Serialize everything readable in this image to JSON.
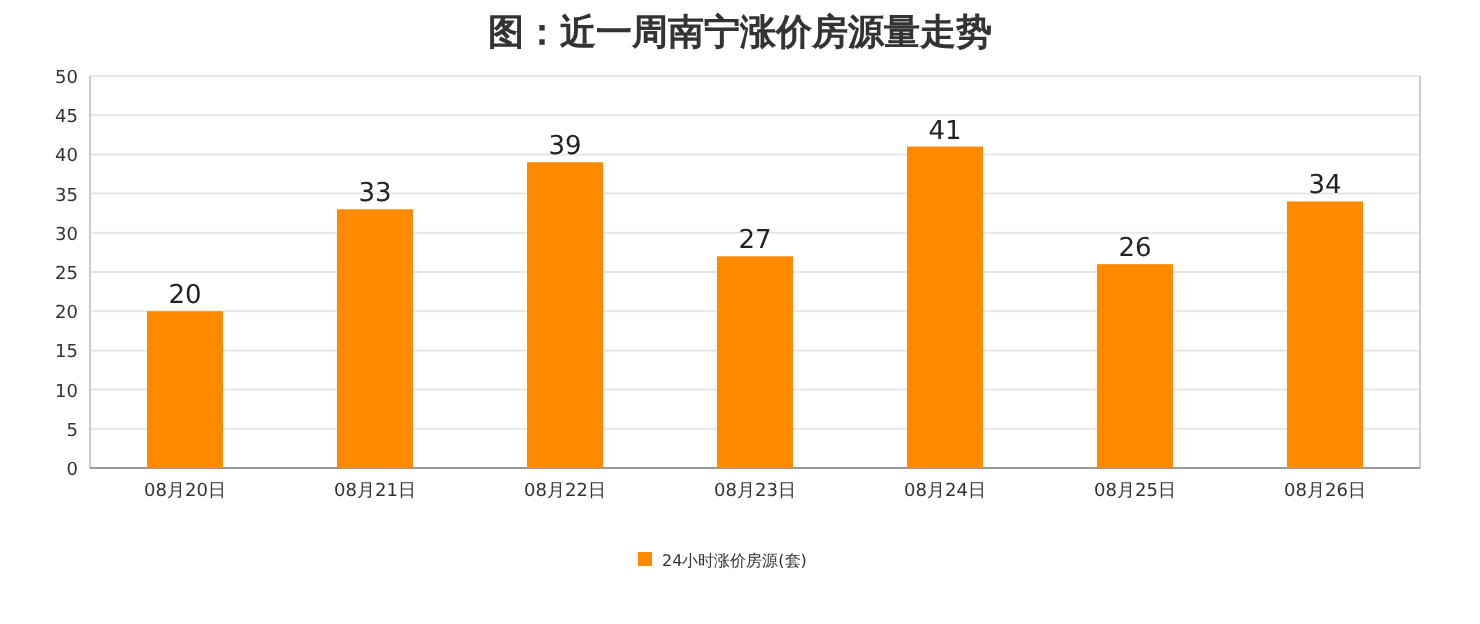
{
  "chart_data": {
    "type": "bar",
    "title": "图：近一周南宁涨价房源量走势",
    "categories": [
      "08月20日",
      "08月21日",
      "08月22日",
      "08月23日",
      "08月24日",
      "08月25日",
      "08月26日"
    ],
    "series": [
      {
        "name": "24小时涨价房源(套)",
        "color": "#ff8a00",
        "values": [
          20,
          33,
          39,
          27,
          41,
          26,
          34
        ]
      }
    ],
    "ylim": [
      0,
      50
    ],
    "yticks": [
      0,
      5,
      10,
      15,
      20,
      25,
      30,
      35,
      40,
      45,
      50
    ],
    "grid": "y",
    "legend": "bottom",
    "data_labels": true
  }
}
